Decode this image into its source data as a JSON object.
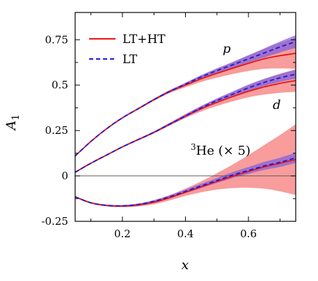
{
  "chart_data": {
    "type": "line",
    "xlabel": "x",
    "ylabel": "A",
    "ylabel_sub": "1",
    "xlim": [
      0.05,
      0.75
    ],
    "ylim": [
      -0.25,
      0.9
    ],
    "xticks": [
      0.2,
      0.4,
      0.6
    ],
    "xtick_labels": [
      "0.2",
      "0.4",
      "0.6"
    ],
    "yticks": [
      -0.25,
      0,
      0.25,
      0.5,
      0.75
    ],
    "ytick_labels": [
      "-0.25",
      "0",
      "0.25",
      "0.5",
      "0.75"
    ],
    "legend": [
      {
        "name": "LT+HT",
        "color": "#e8140f",
        "style": "solid"
      },
      {
        "name": "LT",
        "color": "#1a1ad6",
        "style": "dashed"
      }
    ],
    "annotations": {
      "p": "p",
      "d": "d",
      "he_sup": "3",
      "he_main": "He (× 5)"
    },
    "colors": {
      "ltht": "#e8140f",
      "lt": "#1a1ad6",
      "band_ltht": "#f78b8b",
      "band_lt": "#7b5ee0"
    },
    "series": [
      {
        "target": "p",
        "x": [
          0.05,
          0.1,
          0.15,
          0.2,
          0.25,
          0.3,
          0.35,
          0.4,
          0.45,
          0.5,
          0.55,
          0.6,
          0.65,
          0.7,
          0.75
        ],
        "lt": [
          0.11,
          0.19,
          0.26,
          0.32,
          0.37,
          0.42,
          0.465,
          0.505,
          0.545,
          0.58,
          0.612,
          0.645,
          0.677,
          0.71,
          0.74
        ],
        "lt_err": [
          0.004,
          0.004,
          0.004,
          0.004,
          0.004,
          0.005,
          0.006,
          0.008,
          0.01,
          0.013,
          0.016,
          0.02,
          0.025,
          0.03,
          0.035
        ],
        "ltht": [
          0.11,
          0.19,
          0.26,
          0.32,
          0.37,
          0.42,
          0.465,
          0.5,
          0.535,
          0.565,
          0.593,
          0.62,
          0.645,
          0.662,
          0.675
        ],
        "ltht_err": [
          0.004,
          0.004,
          0.004,
          0.004,
          0.005,
          0.006,
          0.008,
          0.012,
          0.017,
          0.024,
          0.032,
          0.042,
          0.055,
          0.07,
          0.085
        ]
      },
      {
        "target": "d",
        "x": [
          0.05,
          0.1,
          0.15,
          0.2,
          0.25,
          0.3,
          0.35,
          0.4,
          0.45,
          0.5,
          0.55,
          0.6,
          0.65,
          0.7,
          0.75
        ],
        "lt": [
          0.02,
          0.07,
          0.115,
          0.16,
          0.2,
          0.24,
          0.285,
          0.33,
          0.375,
          0.415,
          0.45,
          0.485,
          0.515,
          0.54,
          0.56
        ],
        "lt_err": [
          0.004,
          0.004,
          0.004,
          0.004,
          0.004,
          0.005,
          0.006,
          0.008,
          0.01,
          0.012,
          0.015,
          0.018,
          0.02,
          0.022,
          0.025
        ],
        "ltht": [
          0.02,
          0.07,
          0.115,
          0.16,
          0.2,
          0.24,
          0.285,
          0.33,
          0.37,
          0.405,
          0.437,
          0.466,
          0.49,
          0.51,
          0.525
        ],
        "ltht_err": [
          0.004,
          0.004,
          0.004,
          0.004,
          0.005,
          0.006,
          0.008,
          0.011,
          0.015,
          0.02,
          0.026,
          0.033,
          0.042,
          0.052,
          0.062
        ]
      },
      {
        "target": "3He (x5)",
        "x": [
          0.05,
          0.1,
          0.15,
          0.2,
          0.25,
          0.3,
          0.35,
          0.4,
          0.45,
          0.5,
          0.55,
          0.6,
          0.65,
          0.7,
          0.75
        ],
        "lt": [
          -0.115,
          -0.148,
          -0.162,
          -0.165,
          -0.158,
          -0.14,
          -0.115,
          -0.085,
          -0.055,
          -0.025,
          0.005,
          0.03,
          0.055,
          0.075,
          0.1
        ],
        "lt_err": [
          0.004,
          0.004,
          0.004,
          0.005,
          0.006,
          0.007,
          0.008,
          0.01,
          0.012,
          0.014,
          0.016,
          0.019,
          0.022,
          0.025,
          0.028
        ],
        "ltht": [
          -0.115,
          -0.148,
          -0.163,
          -0.166,
          -0.16,
          -0.145,
          -0.12,
          -0.09,
          -0.06,
          -0.03,
          -0.002,
          0.025,
          0.05,
          0.07,
          0.09
        ],
        "ltht_err": [
          0.004,
          0.004,
          0.005,
          0.006,
          0.008,
          0.011,
          0.015,
          0.02,
          0.03,
          0.045,
          0.065,
          0.09,
          0.12,
          0.155,
          0.195
        ]
      }
    ]
  }
}
